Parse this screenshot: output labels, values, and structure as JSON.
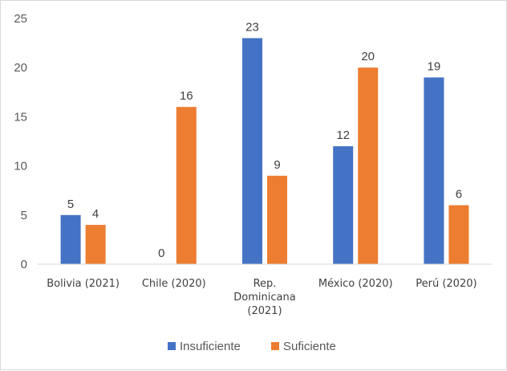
{
  "chart_data": {
    "type": "bar",
    "title": "",
    "xlabel": "",
    "ylabel": "",
    "ylim": [
      0,
      25
    ],
    "yticks": [
      0,
      5,
      10,
      15,
      20,
      25
    ],
    "grid": false,
    "legend_position": "bottom",
    "categories": [
      [
        "Bolivia (2021)"
      ],
      [
        "Chile (2020)"
      ],
      [
        "Rep.",
        "Dominicana",
        "(2021)"
      ],
      [
        "México (2020)"
      ],
      [
        "Perú (2020)"
      ]
    ],
    "series": [
      {
        "name": "Insuficiente",
        "color": "#4472C4",
        "values": [
          5,
          0,
          23,
          12,
          19
        ]
      },
      {
        "name": "Suficiente",
        "color": "#ED7D31",
        "values": [
          4,
          16,
          9,
          20,
          6
        ]
      }
    ]
  }
}
